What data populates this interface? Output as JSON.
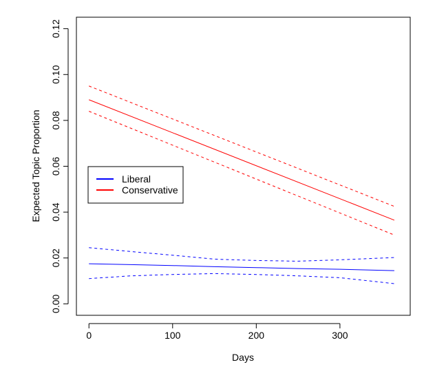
{
  "chart_data": {
    "type": "line",
    "xlabel": "Days",
    "ylabel": "Expected Topic Proportion",
    "xlim": [
      -15,
      384
    ],
    "ylim": [
      -0.005,
      0.125
    ],
    "xticks": [
      0,
      100,
      200,
      300
    ],
    "xtick_labels": [
      "0",
      "100",
      "200",
      "300"
    ],
    "yticks": [
      0.0,
      0.02,
      0.04,
      0.06,
      0.08,
      0.1,
      0.12
    ],
    "ytick_labels": [
      "0.00",
      "0.02",
      "0.04",
      "0.06",
      "0.08",
      "0.10",
      "0.12"
    ],
    "grid": false,
    "legend_position": "left",
    "series": [
      {
        "name": "Liberal",
        "color": "#0000ff",
        "x": [
          0,
          50,
          100,
          150,
          200,
          250,
          300,
          365
        ],
        "y": [
          0.0175,
          0.0171,
          0.0167,
          0.0162,
          0.0158,
          0.0154,
          0.0151,
          0.0145
        ],
        "lower": [
          0.011,
          0.0122,
          0.0128,
          0.0132,
          0.0128,
          0.0122,
          0.0114,
          0.0088
        ],
        "upper": [
          0.0245,
          0.0228,
          0.0212,
          0.0195,
          0.0189,
          0.0186,
          0.0192,
          0.0202
        ]
      },
      {
        "name": "Conservative",
        "color": "#ff0000",
        "x": [
          0,
          365
        ],
        "y": [
          0.089,
          0.0365
        ],
        "lower": [
          0.084,
          0.03
        ],
        "upper": [
          0.095,
          0.0425
        ]
      }
    ]
  }
}
